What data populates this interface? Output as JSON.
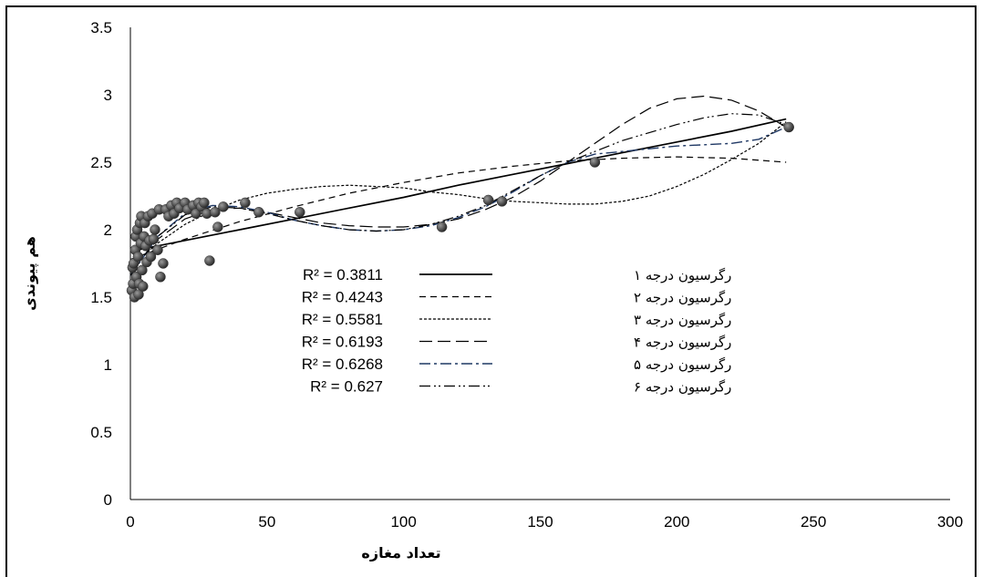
{
  "chart_data": {
    "type": "scatter",
    "title": "",
    "xlabel": "تعداد مغازه",
    "ylabel": "هم پیوندی",
    "xlim": [
      0,
      300
    ],
    "ylim": [
      0,
      3.5
    ],
    "x_ticks": [
      "0",
      "50",
      "100",
      "150",
      "200",
      "250",
      "300"
    ],
    "y_ticks": [
      "0",
      "0.5",
      "1",
      "1.5",
      "2",
      "2.5",
      "3",
      "3.5"
    ],
    "grid": false,
    "legend_position": "center-left",
    "points": [
      [
        0.5,
        1.55
      ],
      [
        0.8,
        1.72
      ],
      [
        1,
        1.6
      ],
      [
        1.2,
        1.75
      ],
      [
        1.5,
        1.5
      ],
      [
        1.8,
        1.85
      ],
      [
        2,
        1.95
      ],
      [
        2.2,
        1.65
      ],
      [
        2.5,
        2.0
      ],
      [
        2.8,
        1.8
      ],
      [
        3,
        1.52
      ],
      [
        3.2,
        1.6
      ],
      [
        3.5,
        2.05
      ],
      [
        3.8,
        1.9
      ],
      [
        4,
        2.1
      ],
      [
        4.3,
        1.7
      ],
      [
        4.6,
        1.58
      ],
      [
        5,
        1.95
      ],
      [
        5.3,
        2.05
      ],
      [
        5.6,
        1.88
      ],
      [
        6,
        1.76
      ],
      [
        6.5,
        2.1
      ],
      [
        7,
        1.92
      ],
      [
        7.5,
        1.8
      ],
      [
        8,
        2.12
      ],
      [
        8.5,
        1.93
      ],
      [
        9,
        2.0
      ],
      [
        10,
        1.85
      ],
      [
        10.5,
        2.15
      ],
      [
        11,
        1.65
      ],
      [
        12,
        1.75
      ],
      [
        13,
        2.15
      ],
      [
        14,
        2.1
      ],
      [
        15,
        2.18
      ],
      [
        16,
        2.12
      ],
      [
        17,
        2.2
      ],
      [
        18,
        2.16
      ],
      [
        20,
        2.2
      ],
      [
        21,
        2.15
      ],
      [
        23,
        2.18
      ],
      [
        24,
        2.12
      ],
      [
        25,
        2.2
      ],
      [
        26,
        2.17
      ],
      [
        27,
        2.2
      ],
      [
        28,
        2.12
      ],
      [
        29,
        1.77
      ],
      [
        31,
        2.13
      ],
      [
        32,
        2.02
      ],
      [
        34,
        2.17
      ],
      [
        42,
        2.2
      ],
      [
        47,
        2.13
      ],
      [
        62,
        2.13
      ],
      [
        114,
        2.02
      ],
      [
        131,
        2.22
      ],
      [
        136,
        2.21
      ],
      [
        170,
        2.5
      ],
      [
        241,
        2.76
      ]
    ],
    "series": [
      {
        "name": "رگرسیون درجه ۱",
        "r2": "R² = 0.3811",
        "color": "#000000",
        "dash": "",
        "width": 1.7,
        "x": [
          0,
          20,
          40,
          60,
          80,
          100,
          120,
          140,
          160,
          180,
          200,
          220,
          240
        ],
        "y": [
          1.84,
          1.92,
          2.0,
          2.08,
          2.16,
          2.24,
          2.33,
          2.41,
          2.49,
          2.57,
          2.65,
          2.73,
          2.82
        ]
      },
      {
        "name": "رگرسیون درجه ۲",
        "r2": "R² = 0.4243",
        "color": "#000000",
        "dash": "7 5",
        "width": 1.2,
        "x": [
          0,
          20,
          40,
          60,
          80,
          100,
          120,
          140,
          160,
          180,
          200,
          220,
          240
        ],
        "y": [
          1.78,
          1.93,
          2.06,
          2.17,
          2.27,
          2.35,
          2.42,
          2.47,
          2.51,
          2.53,
          2.54,
          2.53,
          2.5
        ]
      },
      {
        "name": "رگرسیون درجه ۳",
        "r2": "R² = 0.5581",
        "color": "#000000",
        "dash": "3 2",
        "width": 1.2,
        "x": [
          0,
          10,
          20,
          30,
          40,
          50,
          60,
          70,
          80,
          90,
          100,
          110,
          120,
          130,
          140,
          150,
          160,
          170,
          180,
          190,
          200,
          210,
          220,
          230,
          240
        ],
        "y": [
          1.72,
          1.9,
          2.04,
          2.14,
          2.22,
          2.27,
          2.3,
          2.32,
          2.33,
          2.32,
          2.31,
          2.28,
          2.26,
          2.23,
          2.21,
          2.2,
          2.19,
          2.19,
          2.21,
          2.25,
          2.32,
          2.41,
          2.52,
          2.64,
          2.8
        ]
      },
      {
        "name": "رگرسیون درجه ۴",
        "r2": "R² = 0.6193",
        "color": "#000000",
        "dash": "14 6",
        "width": 1.2,
        "x": [
          0,
          10,
          20,
          30,
          40,
          50,
          60,
          70,
          80,
          90,
          100,
          110,
          120,
          130,
          140,
          150,
          160,
          170,
          180,
          190,
          200,
          210,
          220,
          230,
          240
        ],
        "y": [
          1.68,
          1.93,
          2.08,
          2.15,
          2.16,
          2.13,
          2.09,
          2.05,
          2.03,
          2.02,
          2.02,
          2.04,
          2.08,
          2.15,
          2.24,
          2.36,
          2.5,
          2.64,
          2.78,
          2.9,
          2.97,
          2.99,
          2.96,
          2.88,
          2.76
        ]
      },
      {
        "name": "رگرسیون درجه ۵",
        "r2": "R² = 0.6268",
        "color": "#1f3864",
        "dash": "12 4 3 4",
        "width": 1.4,
        "x": [
          0,
          10,
          20,
          30,
          40,
          50,
          60,
          70,
          80,
          90,
          100,
          110,
          120,
          130,
          140,
          150,
          160,
          170,
          180,
          190,
          200,
          210,
          220,
          230,
          240
        ],
        "y": [
          1.66,
          1.95,
          2.12,
          2.18,
          2.17,
          2.13,
          2.07,
          2.03,
          2.0,
          1.99,
          2.0,
          2.03,
          2.09,
          2.17,
          2.28,
          2.4,
          2.5,
          2.56,
          2.58,
          2.6,
          2.62,
          2.63,
          2.64,
          2.67,
          2.76
        ]
      },
      {
        "name": "رگرسیون درجه ۶",
        "r2": "R² = 0.627",
        "color": "#000000",
        "dash": "12 4 2 3 2 4",
        "width": 1.2,
        "x": [
          0,
          10,
          20,
          30,
          40,
          50,
          60,
          70,
          80,
          90,
          100,
          110,
          120,
          130,
          140,
          150,
          160,
          170,
          180,
          190,
          200,
          210,
          220,
          230,
          240
        ],
        "y": [
          1.66,
          1.95,
          2.11,
          2.17,
          2.16,
          2.12,
          2.07,
          2.03,
          2.0,
          1.99,
          2.0,
          2.04,
          2.1,
          2.18,
          2.29,
          2.4,
          2.5,
          2.58,
          2.66,
          2.72,
          2.78,
          2.83,
          2.86,
          2.85,
          2.78
        ]
      }
    ]
  }
}
